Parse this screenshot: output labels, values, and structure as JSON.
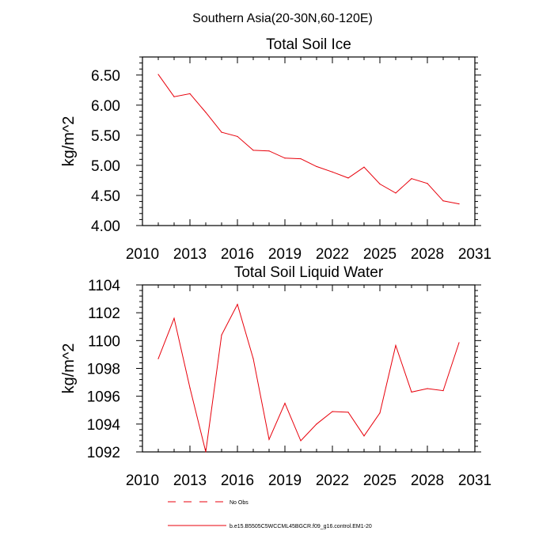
{
  "figure": {
    "suptitle": "Southern Asia(20-30N,60-120E)"
  },
  "chart_data": [
    {
      "type": "line",
      "title": "Total Soil Ice",
      "xlabel": "",
      "ylabel": "kg/m^2",
      "xlim": [
        2010,
        2031
      ],
      "ylim": [
        4.0,
        6.8
      ],
      "xticks": [
        2010,
        2013,
        2016,
        2019,
        2022,
        2025,
        2028,
        2031
      ],
      "yticks": [
        4.0,
        4.5,
        5.0,
        5.5,
        6.0,
        6.5
      ],
      "ytick_labels": [
        "4.00",
        "4.50",
        "5.00",
        "5.50",
        "6.00",
        "6.50"
      ],
      "grid": false,
      "x": [
        2011,
        2012,
        2013,
        2014,
        2015,
        2016,
        2017,
        2018,
        2019,
        2020,
        2021,
        2022,
        2023,
        2024,
        2025,
        2026,
        2027,
        2028,
        2029,
        2030
      ],
      "series": [
        {
          "color": "#e8000b",
          "values": [
            6.51,
            6.14,
            6.19,
            5.88,
            5.55,
            5.48,
            5.25,
            5.24,
            5.12,
            5.11,
            4.98,
            4.89,
            4.79,
            4.97,
            4.69,
            4.54,
            4.78,
            4.7,
            4.41,
            4.36
          ]
        }
      ]
    },
    {
      "type": "line",
      "title": "Total Soil Liquid Water",
      "xlabel": "",
      "ylabel": "kg/m^2",
      "xlim": [
        2010,
        2031
      ],
      "ylim": [
        1092,
        1104
      ],
      "xticks": [
        2010,
        2013,
        2016,
        2019,
        2022,
        2025,
        2028,
        2031
      ],
      "yticks": [
        1092,
        1094,
        1096,
        1098,
        1100,
        1102,
        1104
      ],
      "ytick_labels": [
        "1092",
        "1094",
        "1096",
        "1098",
        "1100",
        "1102",
        "1104"
      ],
      "grid": false,
      "x": [
        2011,
        2012,
        2013,
        2014,
        2015,
        2016,
        2017,
        2018,
        2019,
        2020,
        2021,
        2022,
        2023,
        2024,
        2025,
        2026,
        2027,
        2028,
        2029,
        2030
      ],
      "series": [
        {
          "color": "#e8000b",
          "values": [
            1098.7,
            1101.6,
            1096.6,
            1092.0,
            1100.4,
            1102.6,
            1098.7,
            1092.9,
            1095.5,
            1092.8,
            1094.0,
            1094.9,
            1094.85,
            1093.15,
            1094.8,
            1099.65,
            1096.3,
            1096.55,
            1096.4,
            1099.85
          ]
        }
      ]
    }
  ],
  "legend": [
    {
      "label": "No Obs",
      "style": "dashed",
      "color": "#e8000b"
    },
    {
      "label": "b.e15.B5505C5WCCML45BGCR.f09_g16.control.EM1-20",
      "style": "solid",
      "color": "#e8000b"
    }
  ]
}
